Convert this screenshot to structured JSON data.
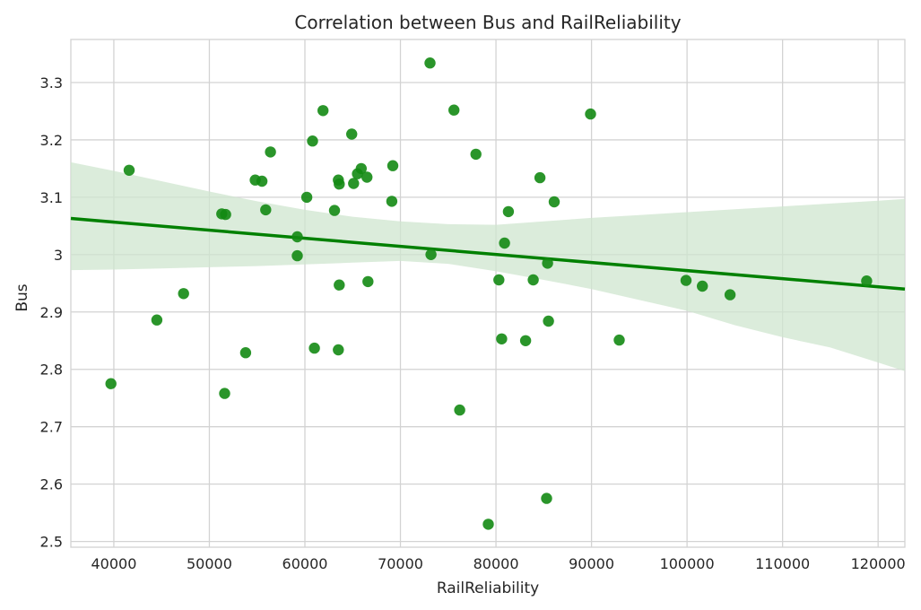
{
  "chart_data": {
    "type": "scatter",
    "title": "Correlation between Bus and RailReliability",
    "xlabel": "RailReliability",
    "ylabel": "Bus",
    "xlim": [
      35500,
      122800
    ],
    "ylim": [
      2.49,
      3.375
    ],
    "xticks": [
      40000,
      50000,
      60000,
      70000,
      80000,
      90000,
      100000,
      110000,
      120000
    ],
    "xtick_labels": [
      "40000",
      "50000",
      "60000",
      "70000",
      "80000",
      "90000",
      "100000",
      "110000",
      "120000"
    ],
    "yticks": [
      2.5,
      2.6,
      2.7,
      2.8,
      2.9,
      3.0,
      3.1,
      3.2,
      3.3
    ],
    "ytick_labels": [
      "2.5",
      "2.6",
      "2.7",
      "2.8",
      "2.9",
      "3",
      "3.1",
      "3.2",
      "3.3"
    ],
    "grid": true,
    "point_color": "#138a13",
    "line_color": "#008000",
    "band_color": "#cfe6cf",
    "points": [
      [
        39700,
        2.775
      ],
      [
        41600,
        3.147
      ],
      [
        44500,
        2.886
      ],
      [
        47300,
        2.932
      ],
      [
        51300,
        3.071
      ],
      [
        51700,
        3.07
      ],
      [
        51600,
        2.758
      ],
      [
        53800,
        2.829
      ],
      [
        54800,
        3.13
      ],
      [
        55500,
        3.128
      ],
      [
        55900,
        3.078
      ],
      [
        56400,
        3.179
      ],
      [
        59200,
        3.031
      ],
      [
        59200,
        2.998
      ],
      [
        60200,
        3.1
      ],
      [
        60800,
        3.198
      ],
      [
        61000,
        2.837
      ],
      [
        61900,
        3.251
      ],
      [
        63100,
        3.077
      ],
      [
        63500,
        3.13
      ],
      [
        63600,
        3.123
      ],
      [
        63600,
        2.947
      ],
      [
        63500,
        2.834
      ],
      [
        64900,
        3.21
      ],
      [
        65100,
        3.124
      ],
      [
        65500,
        3.141
      ],
      [
        65900,
        3.15
      ],
      [
        66500,
        3.135
      ],
      [
        66600,
        2.953
      ],
      [
        69200,
        3.155
      ],
      [
        69100,
        3.093
      ],
      [
        73100,
        3.334
      ],
      [
        73200,
        3.0
      ],
      [
        75600,
        3.252
      ],
      [
        76200,
        2.729
      ],
      [
        77900,
        3.175
      ],
      [
        79200,
        2.53
      ],
      [
        80300,
        2.956
      ],
      [
        80600,
        2.853
      ],
      [
        80900,
        3.02
      ],
      [
        81300,
        3.075
      ],
      [
        83100,
        2.85
      ],
      [
        83900,
        2.956
      ],
      [
        84600,
        3.134
      ],
      [
        85300,
        2.575
      ],
      [
        85400,
        2.985
      ],
      [
        85500,
        2.884
      ],
      [
        86100,
        3.092
      ],
      [
        89900,
        3.245
      ],
      [
        92900,
        2.851
      ],
      [
        99900,
        2.955
      ],
      [
        101600,
        2.945
      ],
      [
        104500,
        2.93
      ],
      [
        118800,
        2.954
      ]
    ],
    "regression": {
      "x": [
        35500,
        122800
      ],
      "y": [
        3.063,
        2.94
      ]
    },
    "confidence_band": {
      "x": [
        35500,
        40000,
        45000,
        50000,
        55000,
        60000,
        65000,
        70000,
        75000,
        80000,
        85000,
        90000,
        95000,
        100000,
        105000,
        110000,
        115000,
        120000,
        122800
      ],
      "upper": [
        3.161,
        3.146,
        3.128,
        3.11,
        3.093,
        3.078,
        3.066,
        3.058,
        3.053,
        3.052,
        3.058,
        3.064,
        3.069,
        3.074,
        3.079,
        3.084,
        3.089,
        3.094,
        3.097
      ],
      "lower": [
        2.973,
        2.974,
        2.976,
        2.978,
        2.98,
        2.983,
        2.986,
        2.989,
        2.984,
        2.971,
        2.956,
        2.94,
        2.921,
        2.902,
        2.877,
        2.856,
        2.838,
        2.812,
        2.797
      ]
    }
  }
}
